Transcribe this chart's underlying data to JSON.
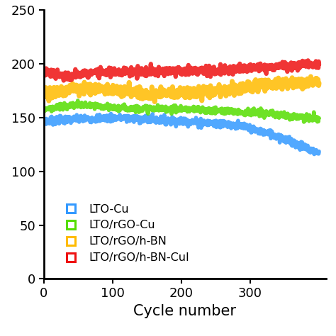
{
  "title": "",
  "xlabel": "Cycle number",
  "ylabel": "",
  "xlim": [
    0,
    410
  ],
  "ylim": [
    0,
    250
  ],
  "xticks": [
    0,
    100,
    200,
    300
  ],
  "yticks": [
    0,
    50,
    100,
    150,
    200,
    250
  ],
  "series": [
    {
      "label": "LTO-Cu",
      "color": "#3399FF",
      "noise": 1.8,
      "linewidth": 4.0,
      "keypoints_x": [
        0,
        100,
        200,
        280,
        340,
        380,
        400
      ],
      "keypoints_y": [
        147,
        150,
        147,
        143,
        133,
        122,
        117
      ]
    },
    {
      "label": "LTO/rGO-Cu",
      "color": "#55DD00",
      "noise": 1.5,
      "linewidth": 4.0,
      "keypoints_x": [
        0,
        50,
        100,
        200,
        300,
        400
      ],
      "keypoints_y": [
        158,
        162,
        159,
        158,
        155,
        149
      ]
    },
    {
      "label": "LTO/rGO/h-BN",
      "color": "#FFBB00",
      "noise": 2.5,
      "linewidth": 5.0,
      "keypoints_x": [
        0,
        30,
        70,
        150,
        250,
        320,
        380,
        400
      ],
      "keypoints_y": [
        170,
        176,
        178,
        172,
        174,
        181,
        182,
        183
      ]
    },
    {
      "label": "LTO/rGO/h-BN-CuI",
      "color": "#EE1111",
      "noise": 2.0,
      "linewidth": 4.5,
      "keypoints_x": [
        0,
        30,
        80,
        150,
        250,
        350,
        400
      ],
      "keypoints_y": [
        193,
        188,
        192,
        193,
        194,
        198,
        200
      ]
    }
  ],
  "figsize": [
    4.74,
    4.74
  ],
  "dpi": 100,
  "legend_marker_size": 9,
  "legend_fontsize": 11.5,
  "tick_fontsize": 13,
  "xlabel_fontsize": 15
}
